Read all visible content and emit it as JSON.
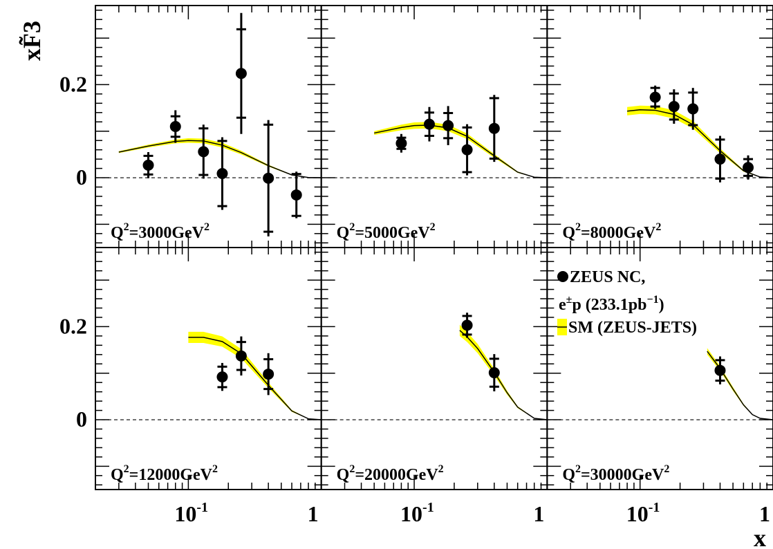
{
  "chart_data": {
    "type": "scatter",
    "title": "",
    "xlabel": "x",
    "ylabel": "xF̃3",
    "xscale": "log",
    "xlim": [
      0.02,
      1.0
    ],
    "ylim": [
      -0.15,
      0.37
    ],
    "grid": false,
    "x_ticks": [
      {
        "value": 0.1,
        "base": "10",
        "exp": "-1"
      },
      {
        "value": 1,
        "base": "1",
        "exp": ""
      }
    ],
    "y_ticks": [
      {
        "value": 0.0,
        "label": "0"
      },
      {
        "value": 0.2,
        "label": "0.2"
      }
    ],
    "zero_line": true,
    "legend": {
      "position": "top-right panel",
      "entries": [
        {
          "marker": "circle",
          "line1": "ZEUS NC,",
          "line2_base": "e",
          "line2_sup": "±",
          "line2_mid": "p (233.1pb",
          "line2_sup2": "−1",
          "line2_end": ")"
        },
        {
          "marker": "band",
          "label": "SM (ZEUS-JETS)"
        }
      ]
    },
    "colors": {
      "band": "#ffff00",
      "line": "#000000",
      "points": "#000000"
    },
    "panels": [
      {
        "q2_label": "Q²=3000GeV²",
        "q2_base": "Q",
        "q2_mid": "=3000GeV",
        "q2": 3000,
        "points": [
          {
            "x": 0.05,
            "y": 0.027,
            "stat": 0.02,
            "tot": 0.028
          },
          {
            "x": 0.08,
            "y": 0.11,
            "stat": 0.022,
            "tot": 0.035
          },
          {
            "x": 0.13,
            "y": 0.056,
            "stat": 0.05,
            "tot": 0.058
          },
          {
            "x": 0.18,
            "y": 0.009,
            "stat": 0.07,
            "tot": 0.078
          },
          {
            "x": 0.25,
            "y": 0.224,
            "stat": 0.095,
            "tot": 0.13
          },
          {
            "x": 0.4,
            "y": -0.001,
            "stat": 0.115,
            "tot": 0.125
          },
          {
            "x": 0.65,
            "y": -0.037,
            "stat": 0.045,
            "tot": 0.05
          }
        ],
        "curve": {
          "x_start": 0.03,
          "x": [
            0.03,
            0.05,
            0.08,
            0.1,
            0.13,
            0.18,
            0.25,
            0.4,
            0.6,
            0.8,
            1.0
          ],
          "y": [
            0.055,
            0.068,
            0.078,
            0.08,
            0.079,
            0.07,
            0.054,
            0.026,
            0.006,
            0.0005,
            0.0
          ],
          "band_half_width": [
            0.002,
            0.003,
            0.004,
            0.005,
            0.005,
            0.005,
            0.004,
            0.002,
            0.001,
            0.0003,
            0.0
          ]
        }
      },
      {
        "q2_label": "Q²=5000GeV²",
        "q2_base": "Q",
        "q2_mid": "=5000GeV",
        "q2": 5000,
        "points": [
          {
            "x": 0.08,
            "y": 0.074,
            "stat": 0.012,
            "tot": 0.02
          },
          {
            "x": 0.13,
            "y": 0.115,
            "stat": 0.025,
            "tot": 0.037
          },
          {
            "x": 0.18,
            "y": 0.112,
            "stat": 0.027,
            "tot": 0.042
          },
          {
            "x": 0.25,
            "y": 0.06,
            "stat": 0.048,
            "tot": 0.055
          },
          {
            "x": 0.4,
            "y": 0.106,
            "stat": 0.065,
            "tot": 0.072
          }
        ],
        "curve": {
          "x_start": 0.05,
          "x": [
            0.05,
            0.08,
            0.1,
            0.13,
            0.18,
            0.25,
            0.4,
            0.6,
            0.8,
            1.0
          ],
          "y": [
            0.096,
            0.108,
            0.112,
            0.113,
            0.107,
            0.089,
            0.047,
            0.012,
            0.0012,
            0.0
          ],
          "band_half_width": [
            0.004,
            0.006,
            0.007,
            0.007,
            0.007,
            0.006,
            0.004,
            0.0015,
            0.0004,
            0.0
          ]
        }
      },
      {
        "q2_label": "Q²=8000GeV²",
        "q2_base": "Q",
        "q2_mid": "=8000GeV",
        "q2": 8000,
        "points": [
          {
            "x": 0.13,
            "y": 0.173,
            "stat": 0.02,
            "tot": 0.025
          },
          {
            "x": 0.18,
            "y": 0.153,
            "stat": 0.028,
            "tot": 0.037
          },
          {
            "x": 0.25,
            "y": 0.148,
            "stat": 0.035,
            "tot": 0.045
          },
          {
            "x": 0.4,
            "y": 0.04,
            "stat": 0.042,
            "tot": 0.05
          },
          {
            "x": 0.65,
            "y": 0.022,
            "stat": 0.018,
            "tot": 0.026
          }
        ],
        "curve": {
          "x_start": 0.08,
          "x": [
            0.08,
            0.1,
            0.13,
            0.18,
            0.25,
            0.4,
            0.6,
            0.8,
            1.0
          ],
          "y": [
            0.143,
            0.146,
            0.145,
            0.136,
            0.114,
            0.058,
            0.015,
            0.0015,
            0.0
          ],
          "band_half_width": [
            0.009,
            0.009,
            0.009,
            0.009,
            0.008,
            0.005,
            0.002,
            0.0005,
            0.0
          ]
        }
      },
      {
        "q2_label": "Q²=12000GeV²",
        "q2_base": "Q",
        "q2_mid": "=12000GeV",
        "q2": 12000,
        "points": [
          {
            "x": 0.18,
            "y": 0.092,
            "stat": 0.022,
            "tot": 0.03
          },
          {
            "x": 0.25,
            "y": 0.137,
            "stat": 0.03,
            "tot": 0.042
          },
          {
            "x": 0.4,
            "y": 0.098,
            "stat": 0.032,
            "tot": 0.045
          }
        ],
        "curve": {
          "x_start": 0.1,
          "x": [
            0.1,
            0.13,
            0.18,
            0.25,
            0.4,
            0.6,
            0.8,
            1.0
          ],
          "y": [
            0.177,
            0.177,
            0.168,
            0.142,
            0.074,
            0.019,
            0.002,
            0.0
          ],
          "band_half_width": [
            0.012,
            0.012,
            0.011,
            0.01,
            0.006,
            0.002,
            0.0005,
            0.0
          ]
        }
      },
      {
        "q2_label": "Q²=20000GeV²",
        "q2_base": "Q",
        "q2_mid": "=20000GeV",
        "q2": 20000,
        "points": [
          {
            "x": 0.25,
            "y": 0.203,
            "stat": 0.02,
            "tot": 0.027
          },
          {
            "x": 0.4,
            "y": 0.101,
            "stat": 0.03,
            "tot": 0.04
          }
        ],
        "curve": {
          "x_start": 0.22,
          "x": [
            0.22,
            0.25,
            0.3,
            0.4,
            0.5,
            0.6,
            0.8,
            1.0
          ],
          "y": [
            0.192,
            0.178,
            0.153,
            0.102,
            0.058,
            0.027,
            0.003,
            0.0
          ],
          "band_half_width": [
            0.012,
            0.011,
            0.01,
            0.007,
            0.004,
            0.002,
            0.0006,
            0.0
          ]
        }
      },
      {
        "q2_label": "Q²=30000GeV²",
        "q2_base": "Q",
        "q2_mid": "=30000GeV",
        "q2": 30000,
        "points": [
          {
            "x": 0.4,
            "y": 0.106,
            "stat": 0.022,
            "tot": 0.03
          }
        ],
        "curve": {
          "x_start": 0.32,
          "x": [
            0.32,
            0.35,
            0.4,
            0.5,
            0.6,
            0.7,
            0.8,
            1.0
          ],
          "y": [
            0.147,
            0.132,
            0.11,
            0.066,
            0.032,
            0.011,
            0.003,
            0.0
          ],
          "band_half_width": [
            0.007,
            0.006,
            0.005,
            0.004,
            0.002,
            0.001,
            0.0005,
            0.0
          ]
        }
      }
    ]
  }
}
